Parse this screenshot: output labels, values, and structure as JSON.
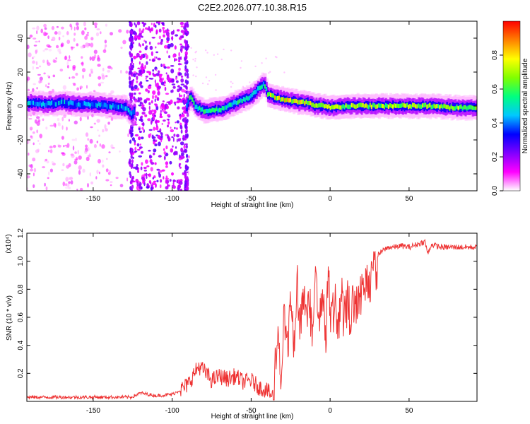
{
  "figure": {
    "title": "C2E2.2026.077.10.38.R15"
  },
  "chart_data": [
    {
      "type": "heatmap",
      "title": "C2E2.2026.077.10.38.R15",
      "xlabel": "Height of straight line (km)",
      "ylabel": "Frequency (Hz)",
      "xlim": [
        -192,
        93
      ],
      "ylim": [
        -50,
        50
      ],
      "xticks": [
        -150,
        -100,
        -50,
        0,
        50
      ],
      "yticks": [
        -40,
        -20,
        0,
        20,
        40
      ],
      "grid": false,
      "colorbar": {
        "label": "Normalized spectral amplitude",
        "range": [
          0,
          1
        ],
        "ticks": [
          0.0,
          0.2,
          0.4,
          0.6,
          0.8
        ],
        "tick_labels": [
          "0.0",
          "0.2",
          "0.4",
          "0.6",
          "0.8"
        ],
        "colormap": [
          "#ffffff",
          "#ff00ff",
          "#8000ff",
          "#0000ff",
          "#00c8ff",
          "#00ff80",
          "#80ff00",
          "#ffff00",
          "#ff8000",
          "#ff0000"
        ]
      },
      "ridge": {
        "x": [
          -192,
          -180,
          -170,
          -160,
          -150,
          -140,
          -130,
          -126,
          -122,
          -110,
          -100,
          -92,
          -89,
          -86,
          -80,
          -70,
          -60,
          -50,
          -45,
          -42,
          -40,
          -35,
          -30,
          -25,
          -20,
          -15,
          -10,
          -5,
          0,
          10,
          20,
          40,
          60,
          80,
          93
        ],
        "frequency_hz": [
          2,
          1,
          2,
          1,
          1,
          0,
          -1,
          -5,
          0,
          0,
          0,
          -2,
          6,
          0,
          -3,
          -2,
          2,
          6,
          11,
          13,
          7,
          5,
          4,
          3,
          2,
          2,
          0,
          0,
          -1,
          0,
          0,
          0,
          0,
          -1,
          -1
        ]
      }
    },
    {
      "type": "line",
      "title": "",
      "xlabel": "Height of straight line (km)",
      "ylabel": "SNR (10 * v/v)",
      "y_multiplier": "(x10⁴)",
      "xlim": [
        -192,
        93
      ],
      "ylim": [
        0,
        1.2
      ],
      "xticks": [
        -150,
        -100,
        -50,
        0,
        50
      ],
      "yticks": [
        0.2,
        0.4,
        0.6,
        0.8,
        1.0,
        1.2
      ],
      "ytick_labels": [
        "0.2",
        "0.4",
        "0.6",
        "0.8",
        "1.0",
        "1.2"
      ],
      "grid": false,
      "series": [
        {
          "color": "#ee3333",
          "x": [
            -192,
            -180,
            -170,
            -160,
            -150,
            -140,
            -130,
            -126,
            -120,
            -110,
            -100,
            -95,
            -90,
            -86,
            -83,
            -80,
            -75,
            -70,
            -65,
            -60,
            -55,
            -50,
            -45,
            -40,
            -38,
            -36,
            -35,
            -33,
            -31,
            -29,
            -27,
            -25,
            -23,
            -21,
            -19,
            -17,
            -15,
            -13,
            -11,
            -9,
            -7,
            -5,
            -3,
            -1,
            1,
            3,
            5,
            7,
            9,
            11,
            13,
            15,
            17,
            19,
            21,
            23,
            25,
            28,
            31,
            34,
            37,
            40,
            45,
            50,
            55,
            60,
            62,
            64,
            70,
            80,
            93
          ],
          "y": [
            0.03,
            0.03,
            0.03,
            0.03,
            0.03,
            0.03,
            0.03,
            0.03,
            0.06,
            0.04,
            0.05,
            0.08,
            0.12,
            0.2,
            0.25,
            0.22,
            0.15,
            0.18,
            0.16,
            0.18,
            0.14,
            0.15,
            0.1,
            0.08,
            0.05,
            0.04,
            0.3,
            0.55,
            0.35,
            0.75,
            0.45,
            0.9,
            0.5,
            1.0,
            0.55,
            0.95,
            0.6,
            0.85,
            0.5,
            1.05,
            0.6,
            0.9,
            0.55,
            1.0,
            0.65,
            0.8,
            0.65,
            0.85,
            0.7,
            0.8,
            0.72,
            0.85,
            0.78,
            0.9,
            0.88,
            0.95,
            0.98,
            1.02,
            1.05,
            1.08,
            1.1,
            1.1,
            1.11,
            1.1,
            1.12,
            1.14,
            1.05,
            1.12,
            1.1,
            1.1,
            1.1
          ]
        }
      ]
    }
  ]
}
